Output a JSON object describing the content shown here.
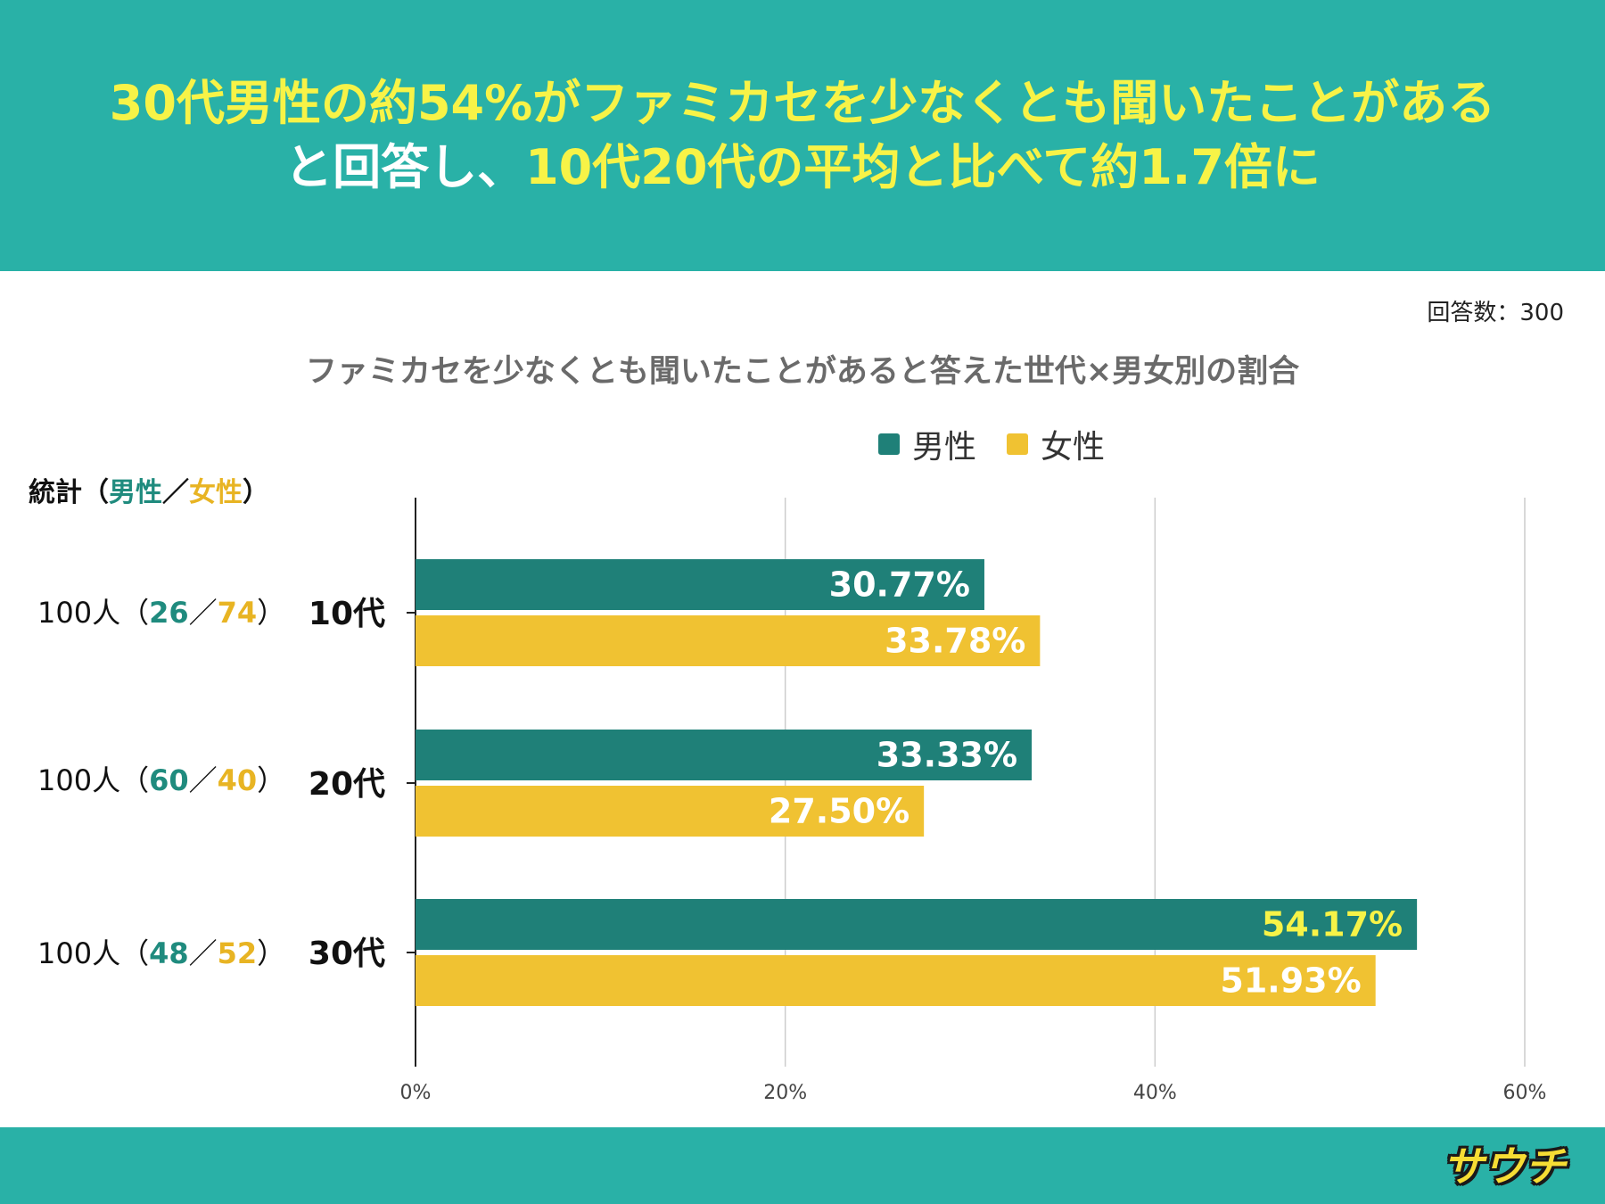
{
  "header": {
    "line1": "30代男性の約54%がファミカセを少なくとも聞いたことがある",
    "line2_white": "と回答し、",
    "line2_yellow": "10代20代の平均と比べて約1.7倍に"
  },
  "respondents": "回答数：300",
  "stats": {
    "head_prefix": "統計（",
    "head_male": "男性",
    "head_sep": "／",
    "head_female": "女性",
    "head_suffix": "）",
    "rows": [
      {
        "total": "100人（",
        "male": "26",
        "sep": "／",
        "female": "74",
        "close": "）"
      },
      {
        "total": "100人（",
        "male": "60",
        "sep": "／",
        "female": "40",
        "close": "）"
      },
      {
        "total": "100人（",
        "male": "48",
        "sep": "／",
        "female": "52",
        "close": "）"
      }
    ]
  },
  "chart_data": {
    "type": "bar",
    "orientation": "horizontal",
    "title": "ファミカセを少なくとも聞いたことがあると答えた世代×男女別の割合",
    "categories": [
      "10代",
      "20代",
      "30代"
    ],
    "series": [
      {
        "name": "男性",
        "color": "#1f8078",
        "values": [
          30.77,
          33.33,
          54.17
        ],
        "labels": [
          "30.77%",
          "33.33%",
          "54.17%"
        ],
        "label_colors": [
          "#ffffff",
          "#ffffff",
          "#f7f347"
        ]
      },
      {
        "name": "女性",
        "color": "#f0c232",
        "values": [
          33.78,
          27.5,
          51.93
        ],
        "labels": [
          "33.78%",
          "27.50%",
          "51.93%"
        ],
        "label_colors": [
          "#ffffff",
          "#ffffff",
          "#ffffff"
        ]
      }
    ],
    "xlim": [
      0,
      60
    ],
    "xticks": [
      0,
      20,
      40,
      60
    ],
    "xtick_labels": [
      "0%",
      "20%",
      "40%",
      "60%"
    ],
    "grid": true,
    "legend": "top-right"
  },
  "logo": "サウチ"
}
